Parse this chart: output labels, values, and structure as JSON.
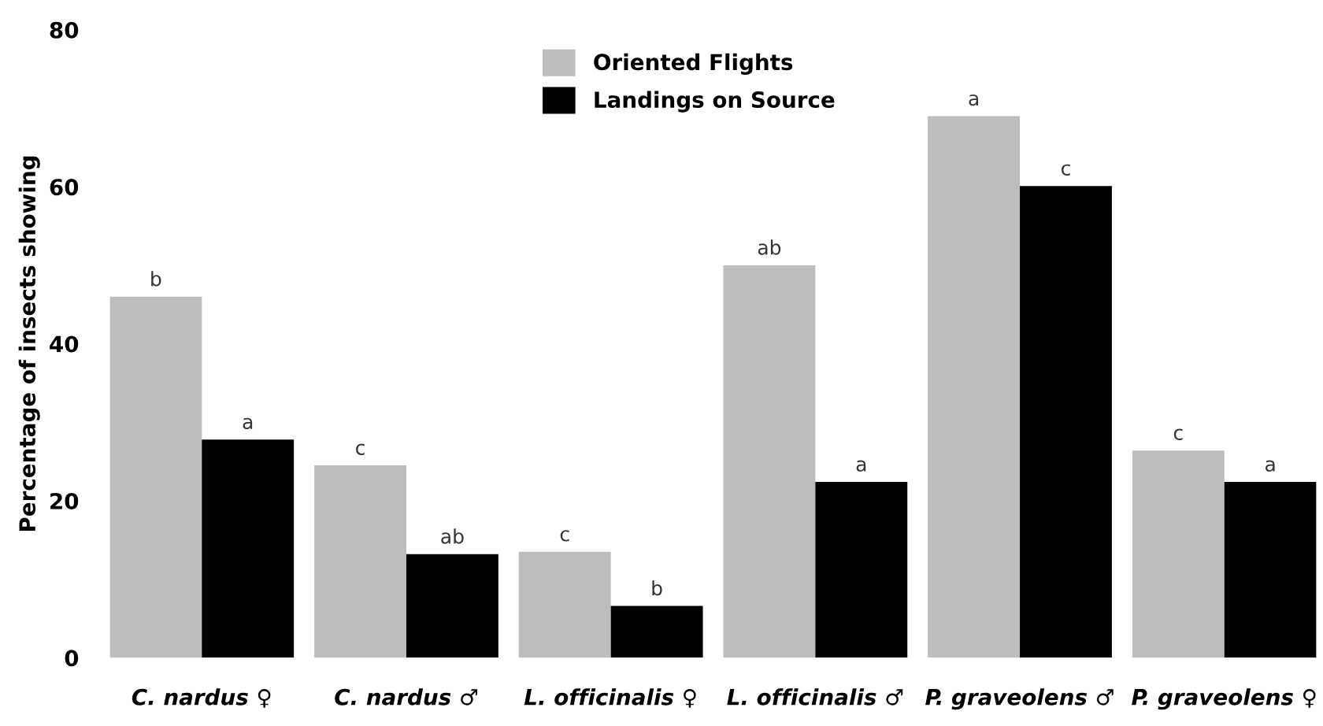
{
  "chart_data": {
    "type": "bar",
    "ylabel": "Percentage of insects showing",
    "categories": [
      "C. nardus ♀",
      "C. nardus ♂",
      "L. officinalis ♀",
      "L. officinalis ♂",
      "P. graveolens ♂",
      "P. graveolens ♀"
    ],
    "series": [
      {
        "name": "Oriented Flights",
        "color": "#bdbdbd",
        "values": [
          46.0,
          24.5,
          13.5,
          50.0,
          69.0,
          26.4
        ],
        "value_labels": [
          "b",
          "c",
          "c",
          "ab",
          "a",
          "c"
        ]
      },
      {
        "name": "Landings on Source",
        "color": "#000000",
        "values": [
          27.8,
          13.2,
          6.6,
          22.4,
          60.1,
          22.4
        ],
        "value_labels": [
          "a",
          "ab",
          "b",
          "a",
          "c",
          "a"
        ]
      }
    ],
    "ylim": [
      0,
      80
    ],
    "yticks": [
      0,
      20,
      40,
      60,
      80
    ],
    "grid": false,
    "legend": "top"
  }
}
